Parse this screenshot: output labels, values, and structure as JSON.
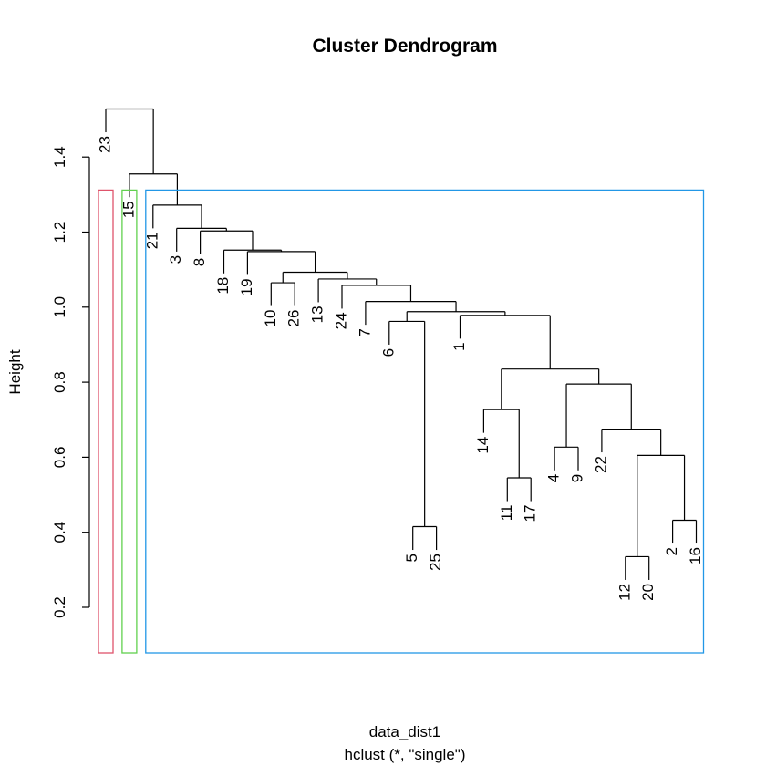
{
  "chart_data": {
    "type": "dendrogram",
    "title": "Cluster Dendrogram",
    "ylabel": "Height",
    "xlabel": "data_dist1",
    "sub": "hclust (*, \"single\")",
    "yticks": [
      0.2,
      0.4,
      0.6,
      0.8,
      1.0,
      1.2,
      1.4
    ],
    "ytick_labels": [
      "0.2",
      "0.4",
      "0.6",
      "0.8",
      "1.0",
      "1.2",
      "1.4"
    ],
    "ylim": [
      0.08,
      1.55
    ],
    "leaf_order": [
      "23",
      "15",
      "21",
      "3",
      "8",
      "18",
      "19",
      "10",
      "26",
      "13",
      "24",
      "7",
      "6",
      "5",
      "25",
      "1",
      "14",
      "11",
      "17",
      "4",
      "9",
      "22",
      "12",
      "20",
      "2",
      "16"
    ],
    "merges": [
      {
        "a": "5",
        "b": "25",
        "height": 0.415
      },
      {
        "a": "12",
        "b": "20",
        "height": 0.335
      },
      {
        "a": "2",
        "b": "16",
        "height": 0.432
      },
      {
        "a": "11",
        "b": "17",
        "height": 0.545
      },
      {
        "a": "4",
        "b": "9",
        "height": 0.627
      },
      {
        "a": "10",
        "b": "26",
        "height": 1.065
      },
      {
        "a": "[12,20]",
        "b": "[2,16]",
        "height": 0.605
      },
      {
        "a": "22",
        "b": "[12,20,2,16]",
        "height": 0.675
      },
      {
        "a": "[4,9]",
        "b": "[22,...]",
        "height": 0.795
      },
      {
        "a": "14",
        "b": "[11,17]",
        "height": 0.727
      },
      {
        "a": "[14,11,17]",
        "b": "[4,9,22,...]",
        "height": 0.835
      },
      {
        "a": "1",
        "b": "[14,...]",
        "height": 0.978
      },
      {
        "a": "6",
        "b": "[5,25]",
        "height": 0.962
      },
      {
        "a": "[6,5,25]",
        "b": "[1,...]",
        "height": 0.988
      },
      {
        "a": "7",
        "b": "[6,...]",
        "height": 1.015
      },
      {
        "a": "24",
        "b": "[7,...]",
        "height": 1.058
      },
      {
        "a": "13",
        "b": "[24,...]",
        "height": 1.075
      },
      {
        "a": "[10,26]",
        "b": "[13,...]",
        "height": 1.093
      },
      {
        "a": "19",
        "b": "[10,...]",
        "height": 1.148
      },
      {
        "a": "18",
        "b": "[19,...]",
        "height": 1.152
      },
      {
        "a": "8",
        "b": "[18,...]",
        "height": 1.203
      },
      {
        "a": "3",
        "b": "[8,...]",
        "height": 1.21
      },
      {
        "a": "21",
        "b": "[3,...]",
        "height": 1.272
      },
      {
        "a": "15",
        "b": "[21,...]",
        "height": 1.355
      },
      {
        "a": "23",
        "b": "[15,...]",
        "height": 1.528
      }
    ],
    "cluster_boxes": [
      {
        "first_leaf": "23",
        "last_leaf": "23",
        "color": "#DF536B"
      },
      {
        "first_leaf": "15",
        "last_leaf": "15",
        "color": "#61D04F"
      },
      {
        "first_leaf": "21",
        "last_leaf": "16",
        "color": "#2297E6"
      }
    ],
    "box_top": 1.312,
    "colors": {
      "axis": "#000000",
      "branch": "#000000"
    }
  }
}
